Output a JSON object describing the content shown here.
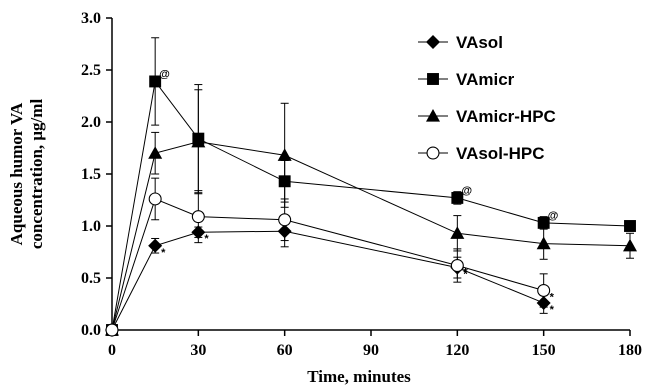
{
  "chart_data": {
    "type": "line",
    "xlabel": "Time, minutes",
    "ylabel_lines": [
      "Aqueous humor  VA",
      "concentration, μg/ml"
    ],
    "xlim": [
      0,
      180
    ],
    "ylim": [
      0,
      3.0
    ],
    "xticks": [
      0,
      30,
      60,
      90,
      120,
      150,
      180
    ],
    "yticks": [
      0.0,
      0.5,
      1.0,
      1.5,
      2.0,
      2.5,
      3.0
    ],
    "ytick_labels": [
      "0.0",
      "0.5",
      "1.0",
      "1.5",
      "2.0",
      "2.5",
      "3.0"
    ],
    "grid": false,
    "legend_position": "top-right",
    "series": [
      {
        "name": "VAsol",
        "marker": "diamond",
        "x": [
          0,
          15,
          30,
          60,
          120,
          150
        ],
        "y": [
          0.0,
          0.81,
          0.94,
          0.95,
          0.6,
          0.26
        ],
        "err": [
          0,
          0.07,
          0.05,
          0.15,
          0.1,
          0.1
        ],
        "annotations": [
          {
            "x": 15,
            "text": "*"
          },
          {
            "x": 30,
            "text": "*"
          },
          {
            "x": 120,
            "text": "*"
          },
          {
            "x": 150,
            "text": "*"
          }
        ]
      },
      {
        "name": "VAmicr",
        "marker": "square",
        "x": [
          0,
          15,
          30,
          60,
          120,
          150,
          180
        ],
        "y": [
          0.0,
          2.39,
          1.84,
          1.43,
          1.27,
          1.03,
          1.0
        ],
        "err": [
          0,
          0.42,
          0.52,
          0.2,
          0.06,
          0.06,
          0.0
        ],
        "annotations": [
          {
            "x": 15,
            "text": "@"
          },
          {
            "x": 120,
            "text": "@"
          },
          {
            "x": 150,
            "text": "@"
          }
        ]
      },
      {
        "name": "VAmicr-HPC",
        "marker": "triangle",
        "x": [
          0,
          15,
          30,
          60,
          120,
          150,
          180
        ],
        "y": [
          0.0,
          1.7,
          1.81,
          1.68,
          0.93,
          0.83,
          0.81
        ],
        "err": [
          0,
          0.2,
          0.5,
          0.5,
          0.17,
          0.15,
          0.12
        ],
        "annotations": []
      },
      {
        "name": "VAsol-HPC",
        "marker": "circle-open",
        "x": [
          0,
          15,
          30,
          60,
          120,
          150
        ],
        "y": [
          0.0,
          1.26,
          1.09,
          1.06,
          0.62,
          0.38
        ],
        "err": [
          0,
          0.2,
          0.25,
          0.2,
          0.16,
          0.16
        ],
        "annotations": [
          {
            "x": 120,
            "text": "*"
          },
          {
            "x": 150,
            "text": "*"
          }
        ]
      }
    ]
  }
}
